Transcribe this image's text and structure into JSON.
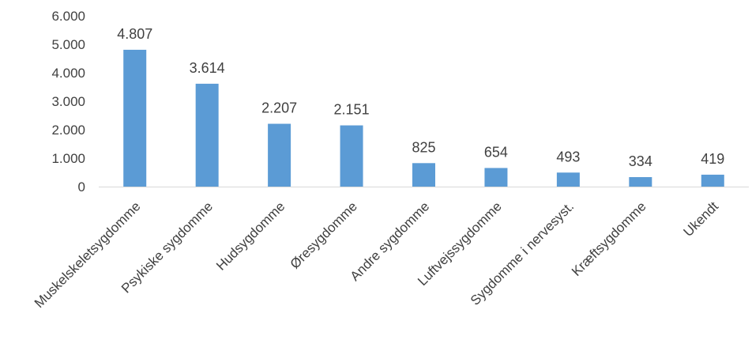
{
  "chart_data": {
    "type": "bar",
    "categories": [
      "Muskelskeletsygdomme",
      "Psykiske sygdomme",
      "Hudsygdomme",
      "Øresygdomme",
      "Andre sygdomme",
      "Luftvejssygdomme",
      "Sygdomme i nervesyst.",
      "Kræftsygdomme",
      "Ukendt"
    ],
    "values": [
      4807,
      3614,
      2207,
      2151,
      825,
      654,
      493,
      334,
      419
    ],
    "value_labels": [
      "4.807",
      "3.614",
      "2.207",
      "2.151",
      "825",
      "654",
      "493",
      "334",
      "419"
    ],
    "y_ticks": [
      "0",
      "1.000",
      "2.000",
      "3.000",
      "4.000",
      "5.000",
      "6.000"
    ],
    "ylim": [
      0,
      6000
    ],
    "grid": false,
    "legend": "none",
    "bar_color": "#5B9BD5",
    "axis_color": "#D9D9D9"
  }
}
